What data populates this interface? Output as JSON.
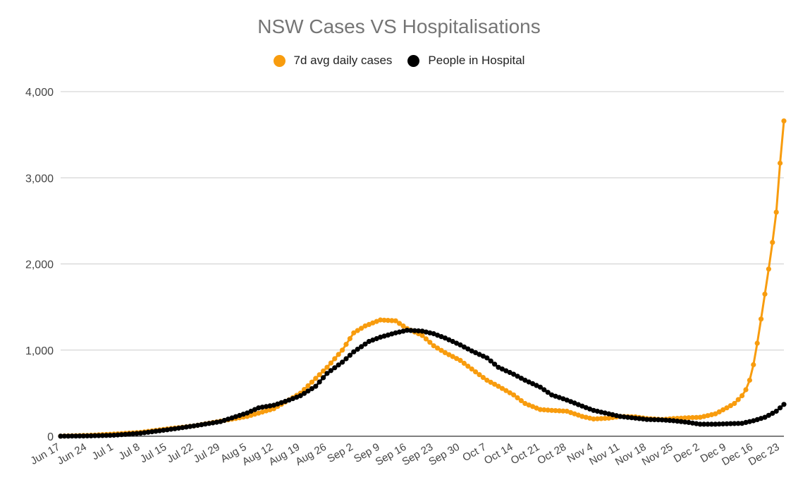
{
  "chart_data": {
    "type": "line",
    "title": "NSW Cases VS Hospitalisations",
    "xlabel": "",
    "ylabel": "",
    "ylim": [
      0,
      4000
    ],
    "yticks": [
      0,
      1000,
      2000,
      3000,
      4000
    ],
    "ytick_labels": [
      "0",
      "1,000",
      "2,000",
      "3,000",
      "4,000"
    ],
    "grid": true,
    "legend_position": "top",
    "x_tick_labels": [
      "Jun 17",
      "Jun 24",
      "Jul 1",
      "Jul 8",
      "Jul 15",
      "Jul 22",
      "Jul 29",
      "Aug 5",
      "Aug 12",
      "Aug 19",
      "Aug 26",
      "Sep 2",
      "Sep 9",
      "Sep 16",
      "Sep 23",
      "Sep 30",
      "Oct 7",
      "Oct 14",
      "Oct 21",
      "Oct 28",
      "Nov 4",
      "Nov 11",
      "Nov 18",
      "Nov 25",
      "Dec 2",
      "Dec 9",
      "Dec 16",
      "Dec 23"
    ],
    "x_tick_day_offsets": [
      0,
      7,
      14,
      21,
      28,
      35,
      42,
      49,
      56,
      63,
      70,
      77,
      84,
      91,
      98,
      105,
      112,
      119,
      126,
      133,
      140,
      147,
      154,
      161,
      168,
      175,
      182,
      189
    ],
    "series": [
      {
        "name": "7d avg daily cases",
        "color": "#f89c0e",
        "keypoints": [
          [
            0,
            2
          ],
          [
            7,
            10
          ],
          [
            14,
            25
          ],
          [
            21,
            45
          ],
          [
            28,
            85
          ],
          [
            35,
            120
          ],
          [
            42,
            175
          ],
          [
            49,
            230
          ],
          [
            56,
            320
          ],
          [
            63,
            500
          ],
          [
            70,
            800
          ],
          [
            74,
            1000
          ],
          [
            77,
            1200
          ],
          [
            80,
            1280
          ],
          [
            84,
            1350
          ],
          [
            88,
            1340
          ],
          [
            91,
            1250
          ],
          [
            95,
            1170
          ],
          [
            98,
            1050
          ],
          [
            101,
            970
          ],
          [
            105,
            880
          ],
          [
            108,
            780
          ],
          [
            112,
            650
          ],
          [
            115,
            580
          ],
          [
            119,
            480
          ],
          [
            122,
            380
          ],
          [
            126,
            310
          ],
          [
            129,
            300
          ],
          [
            133,
            290
          ],
          [
            137,
            230
          ],
          [
            140,
            200
          ],
          [
            144,
            210
          ],
          [
            147,
            230
          ],
          [
            151,
            225
          ],
          [
            154,
            205
          ],
          [
            158,
            195
          ],
          [
            161,
            205
          ],
          [
            165,
            215
          ],
          [
            168,
            220
          ],
          [
            172,
            260
          ],
          [
            175,
            330
          ],
          [
            177,
            380
          ],
          [
            179,
            470
          ],
          [
            180,
            540
          ],
          [
            181,
            650
          ],
          [
            182,
            830
          ],
          [
            183,
            1080
          ],
          [
            184,
            1360
          ],
          [
            185,
            1650
          ],
          [
            186,
            1940
          ],
          [
            187,
            2250
          ],
          [
            188,
            2600
          ],
          [
            189,
            3170
          ],
          [
            190,
            3660
          ]
        ]
      },
      {
        "name": "People in Hospital",
        "color": "#000000",
        "keypoints": [
          [
            0,
            1
          ],
          [
            7,
            4
          ],
          [
            14,
            12
          ],
          [
            21,
            35
          ],
          [
            28,
            75
          ],
          [
            35,
            120
          ],
          [
            42,
            170
          ],
          [
            49,
            270
          ],
          [
            52,
            330
          ],
          [
            56,
            360
          ],
          [
            60,
            420
          ],
          [
            63,
            470
          ],
          [
            67,
            580
          ],
          [
            70,
            730
          ],
          [
            74,
            860
          ],
          [
            77,
            980
          ],
          [
            81,
            1100
          ],
          [
            84,
            1150
          ],
          [
            88,
            1200
          ],
          [
            91,
            1230
          ],
          [
            95,
            1220
          ],
          [
            98,
            1190
          ],
          [
            101,
            1140
          ],
          [
            105,
            1060
          ],
          [
            108,
            990
          ],
          [
            112,
            910
          ],
          [
            115,
            800
          ],
          [
            119,
            720
          ],
          [
            122,
            650
          ],
          [
            126,
            570
          ],
          [
            129,
            480
          ],
          [
            133,
            420
          ],
          [
            137,
            350
          ],
          [
            140,
            300
          ],
          [
            144,
            260
          ],
          [
            147,
            230
          ],
          [
            151,
            210
          ],
          [
            154,
            195
          ],
          [
            158,
            190
          ],
          [
            161,
            180
          ],
          [
            165,
            160
          ],
          [
            168,
            140
          ],
          [
            172,
            140
          ],
          [
            175,
            145
          ],
          [
            179,
            150
          ],
          [
            182,
            180
          ],
          [
            185,
            220
          ],
          [
            188,
            290
          ],
          [
            190,
            370
          ]
        ]
      }
    ]
  }
}
